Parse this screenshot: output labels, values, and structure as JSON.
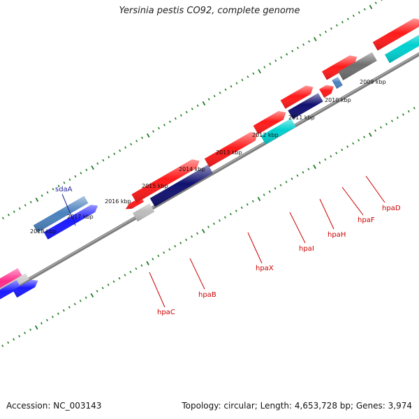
{
  "title": "Yersinia pestis CO92, complete genome",
  "footer": {
    "accession": "Accession: NC_003143",
    "summary": "Topology: circular; Length: 4,653,728 bp; Genes: 3,974"
  },
  "scale_labels": [
    "2009 kbp",
    "2010 kbp",
    "2011 kbp",
    "2012 kbp",
    "2013 kbp",
    "2014 kbp",
    "2015 kbp",
    "2016 kbp",
    "2017 kbp",
    "2018 kbp"
  ],
  "gene_labels": [
    "sdaA",
    "hpaC",
    "hpaB",
    "hpaX",
    "hpaI",
    "hpaH",
    "hpaF",
    "hpaD"
  ],
  "colors": {
    "backbone": "#7d7d7d",
    "ticks": "#1a7a1a",
    "red": "#ff1a1a",
    "navy": "#101070",
    "blue": "#1a1aff",
    "steelblue": "#4a82bd",
    "cyan": "#00d0d0",
    "grey": "#6e6e6e",
    "lightgrey": "#bcbcbc",
    "pink": "#ff2d8a",
    "label_red": "#cc0000",
    "label_blue": "#1f1f9e"
  }
}
